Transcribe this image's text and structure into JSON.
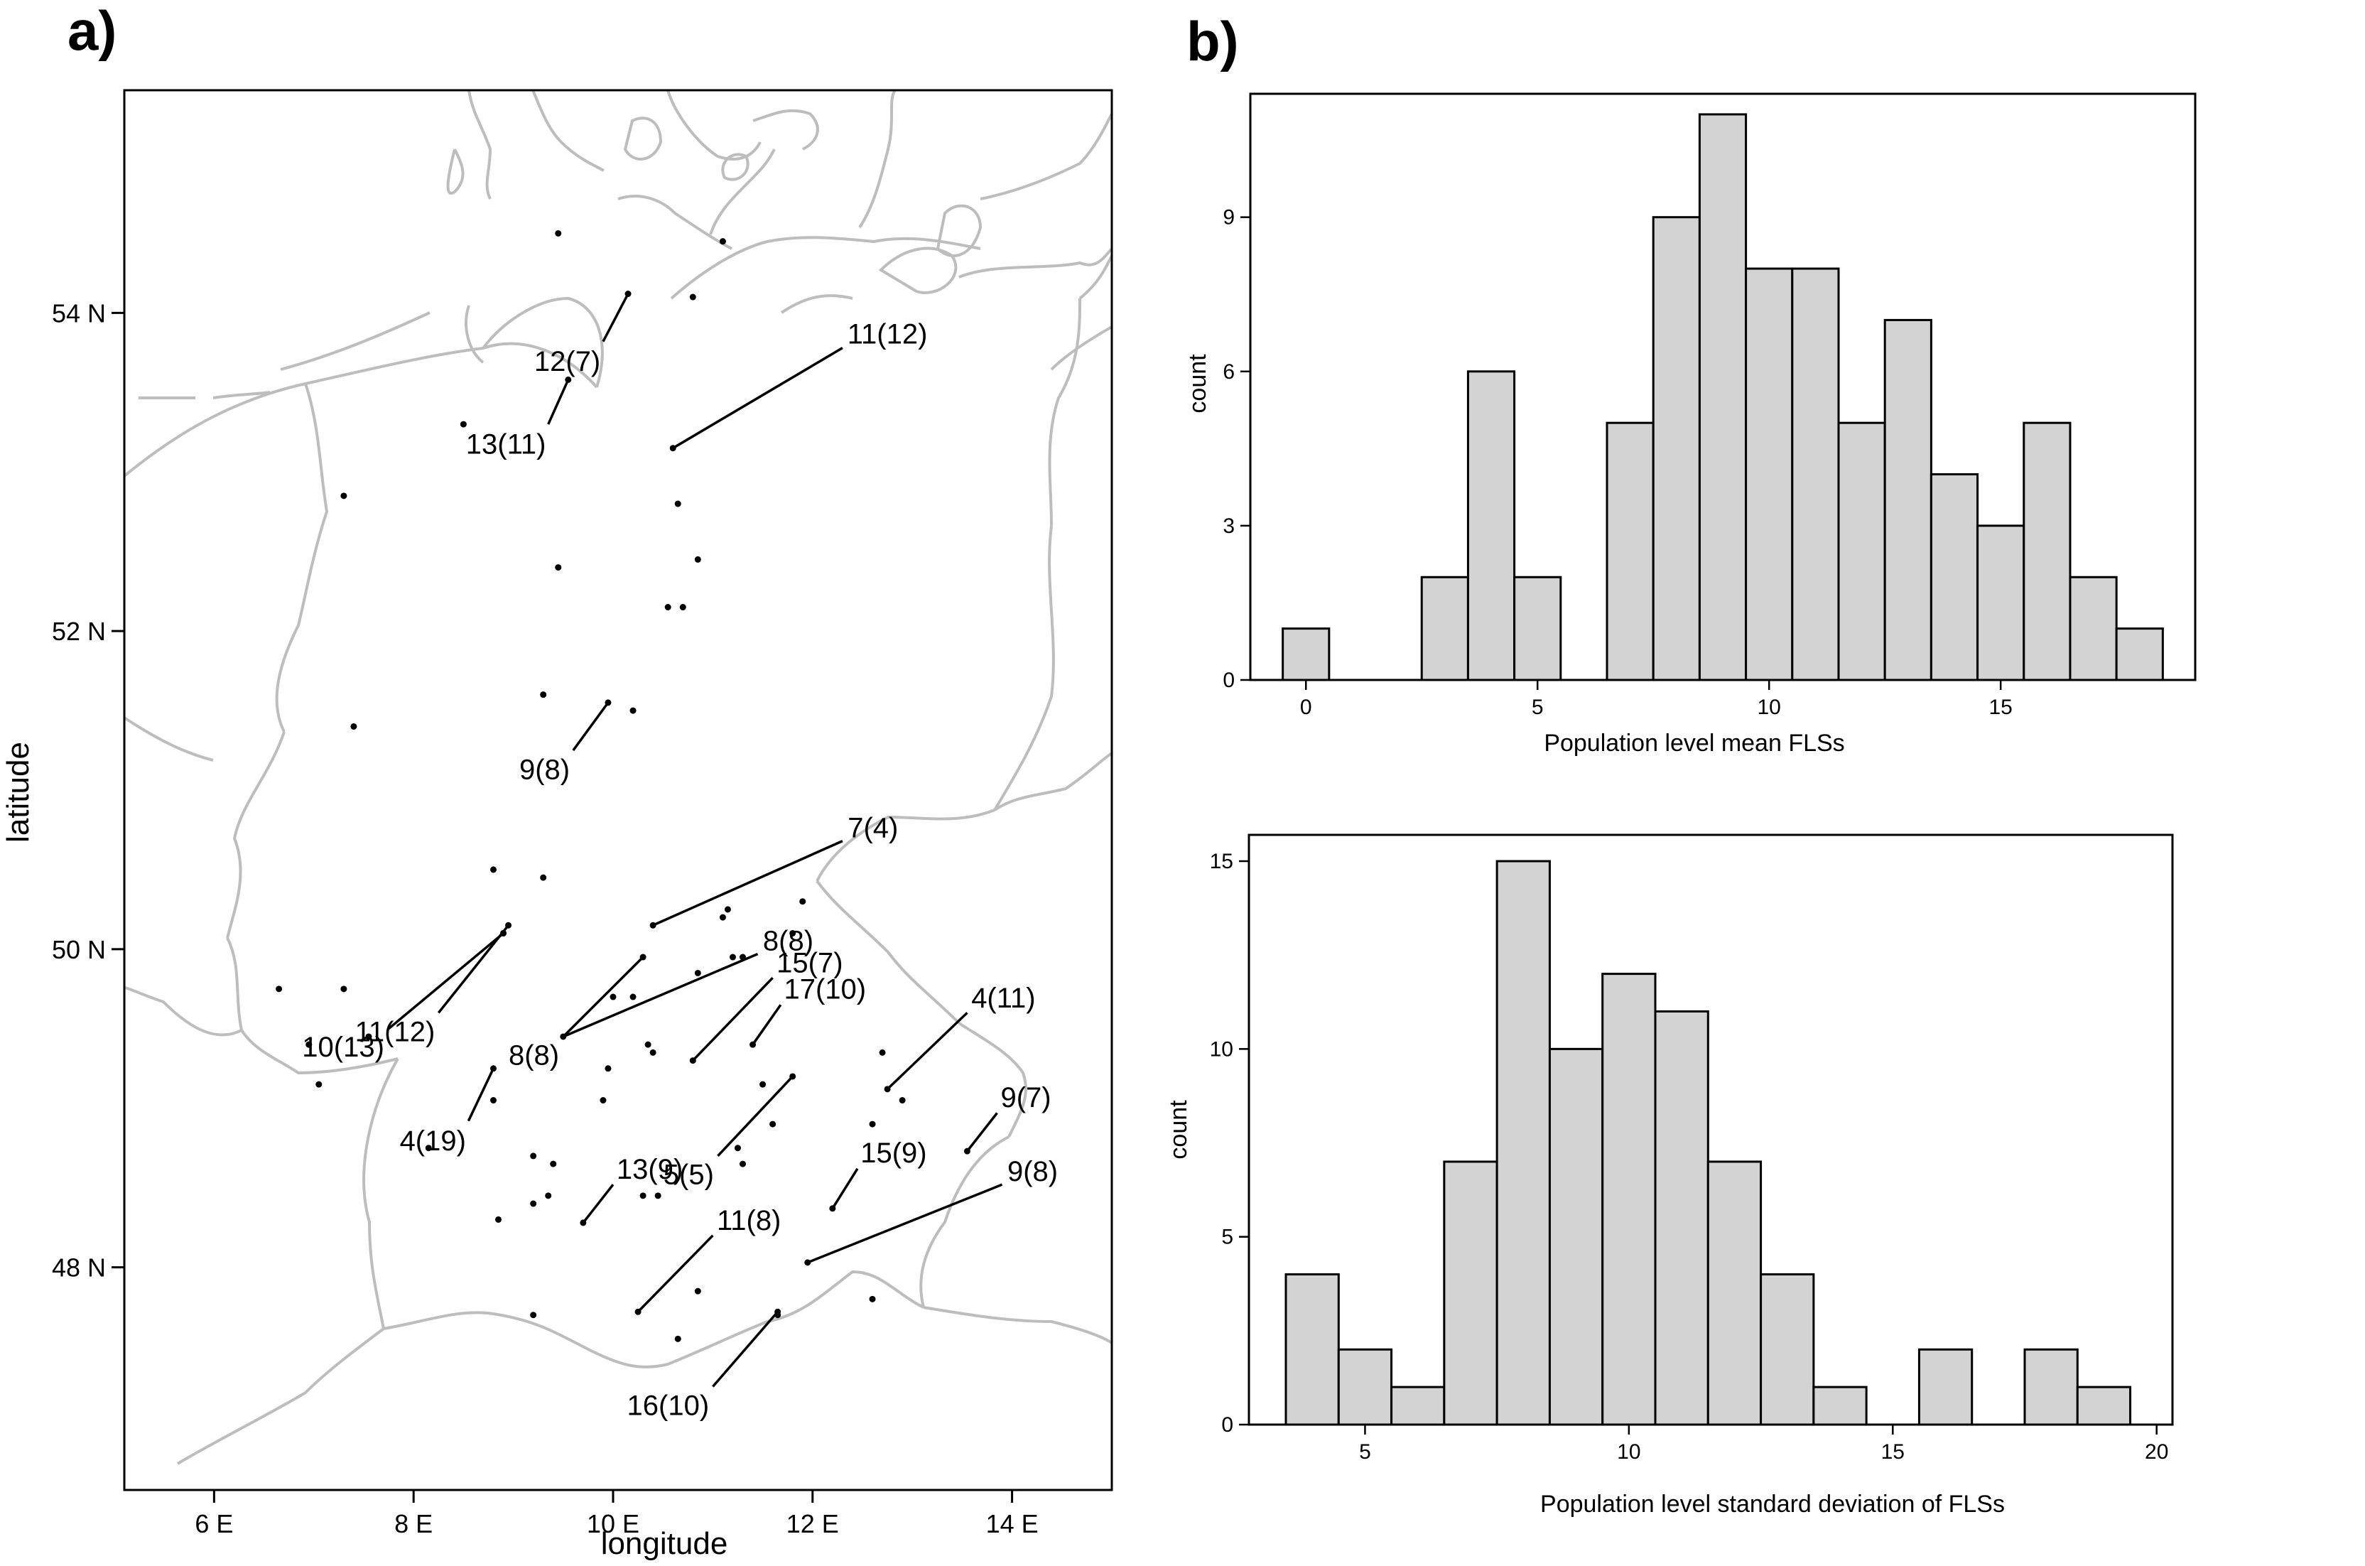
{
  "panels": {
    "a_label": "a)",
    "b_label": "b)"
  },
  "chart_data": [
    {
      "type": "scatter",
      "panel": "a)",
      "xlabel": "longitude",
      "ylabel": "latitude",
      "xlim": [
        5.1,
        15.0
      ],
      "ylim": [
        46.6,
        55.4
      ],
      "xticks": [
        6,
        8,
        10,
        12,
        14
      ],
      "xtick_labels": [
        "6 E",
        "8 E",
        "10 E",
        "12 E",
        "14 E"
      ],
      "yticks": [
        48,
        50,
        52,
        54
      ],
      "ytick_labels": [
        "48 N",
        "50 N",
        "52 N",
        "54 N"
      ],
      "points": [
        [
          9.45,
          54.5
        ],
        [
          11.1,
          54.45
        ],
        [
          10.8,
          54.1
        ],
        [
          8.5,
          53.3
        ],
        [
          7.3,
          52.85
        ],
        [
          10.65,
          52.8
        ],
        [
          10.85,
          52.45
        ],
        [
          9.45,
          52.4
        ],
        [
          10.55,
          52.15
        ],
        [
          10.7,
          52.15
        ],
        [
          9.3,
          51.6
        ],
        [
          10.2,
          51.5
        ],
        [
          7.4,
          51.4
        ],
        [
          8.8,
          50.5
        ],
        [
          9.3,
          50.45
        ],
        [
          11.15,
          50.25
        ],
        [
          11.1,
          50.2
        ],
        [
          11.9,
          50.3
        ],
        [
          8.9,
          50.1
        ],
        [
          11.8,
          50.1
        ],
        [
          11.3,
          49.95
        ],
        [
          6.65,
          49.75
        ],
        [
          7.3,
          49.75
        ],
        [
          7.55,
          49.45
        ],
        [
          10.0,
          49.7
        ],
        [
          10.2,
          49.7
        ],
        [
          10.85,
          49.85
        ],
        [
          11.2,
          49.95
        ],
        [
          6.95,
          49.4
        ],
        [
          10.35,
          49.4
        ],
        [
          10.4,
          49.35
        ],
        [
          9.95,
          49.25
        ],
        [
          12.7,
          49.35
        ],
        [
          7.05,
          49.15
        ],
        [
          8.8,
          49.05
        ],
        [
          9.9,
          49.05
        ],
        [
          11.5,
          49.15
        ],
        [
          12.9,
          49.05
        ],
        [
          11.6,
          48.9
        ],
        [
          12.6,
          48.9
        ],
        [
          9.2,
          48.7
        ],
        [
          9.4,
          48.65
        ],
        [
          11.25,
          48.75
        ],
        [
          11.3,
          48.65
        ],
        [
          9.35,
          48.45
        ],
        [
          9.2,
          48.4
        ],
        [
          10.3,
          48.45
        ],
        [
          10.45,
          48.45
        ],
        [
          8.85,
          48.3
        ],
        [
          10.85,
          47.85
        ],
        [
          12.6,
          47.8
        ],
        [
          9.2,
          47.7
        ],
        [
          11.65,
          47.7
        ],
        [
          10.65,
          47.55
        ],
        [
          8.15,
          48.75
        ]
      ],
      "segments": [
        {
          "label": "12(7)",
          "from": [
            10.15,
            54.12
          ],
          "to": [
            9.9,
            53.82
          ]
        },
        {
          "label": "13(11)",
          "from": [
            9.55,
            53.58
          ],
          "to": [
            9.35,
            53.3
          ]
        },
        {
          "label": "11(12)",
          "from": [
            10.6,
            53.15
          ],
          "to": [
            12.3,
            53.78
          ]
        },
        {
          "label": "9(8)",
          "from": [
            9.95,
            51.55
          ],
          "to": [
            9.6,
            51.25
          ]
        },
        {
          "label": "7(4)",
          "from": [
            10.4,
            50.15
          ],
          "to": [
            12.3,
            50.68
          ]
        },
        {
          "label": "10(13)",
          "from": [
            8.9,
            50.1
          ],
          "to": [
            7.75,
            49.5
          ]
        },
        {
          "label": "11(12)",
          "from": [
            8.95,
            50.15
          ],
          "to": [
            8.25,
            49.6
          ]
        },
        {
          "label": "8(8)",
          "from": [
            10.3,
            49.95
          ],
          "to": [
            9.5,
            49.45
          ]
        },
        {
          "label": "8(8)",
          "from": [
            9.5,
            49.45
          ],
          "to": [
            11.45,
            49.97
          ]
        },
        {
          "label": "15(7)",
          "from": [
            10.8,
            49.3
          ],
          "to": [
            11.6,
            49.82
          ]
        },
        {
          "label": "17(10)",
          "from": [
            11.4,
            49.4
          ],
          "to": [
            11.68,
            49.65
          ]
        },
        {
          "label": "4(11)",
          "from": [
            12.75,
            49.12
          ],
          "to": [
            13.55,
            49.6
          ]
        },
        {
          "label": "4(19)",
          "from": [
            8.8,
            49.25
          ],
          "to": [
            8.55,
            48.92
          ]
        },
        {
          "label": "5(5)",
          "from": [
            11.8,
            49.2
          ],
          "to": [
            11.05,
            48.7
          ]
        },
        {
          "label": "9(7)",
          "from": [
            13.55,
            48.73
          ],
          "to": [
            13.85,
            48.97
          ]
        },
        {
          "label": "15(9)",
          "from": [
            12.2,
            48.37
          ],
          "to": [
            12.45,
            48.62
          ]
        },
        {
          "label": "13(9)",
          "from": [
            9.7,
            48.28
          ],
          "to": [
            10.0,
            48.52
          ]
        },
        {
          "label": "9(8)",
          "from": [
            11.95,
            48.03
          ],
          "to": [
            13.9,
            48.52
          ]
        },
        {
          "label": "11(8)",
          "from": [
            10.25,
            47.72
          ],
          "to": [
            11.0,
            48.2
          ]
        },
        {
          "label": "16(10)",
          "from": [
            11.65,
            47.72
          ],
          "to": [
            11.0,
            47.25
          ]
        }
      ],
      "border_color": "#bdbdbd"
    },
    {
      "type": "bar",
      "panel": "b) top",
      "xlabel": "Population level mean FLSs",
      "ylabel": "count",
      "xlim": [
        -1.2,
        19.2
      ],
      "ylim": [
        0,
        11.4
      ],
      "xticks": [
        0,
        5,
        10,
        15
      ],
      "yticks": [
        0,
        3,
        6,
        9
      ],
      "bin_width": 1,
      "bin_centers": [
        0,
        1,
        2,
        3,
        4,
        5,
        6,
        7,
        8,
        9,
        10,
        11,
        12,
        13,
        14,
        15,
        16,
        17,
        18
      ],
      "values": [
        1,
        0,
        0,
        2,
        6,
        2,
        0,
        5,
        9,
        11,
        8,
        8,
        5,
        7,
        4,
        3,
        5,
        2,
        1
      ],
      "bar_color": "#d3d3d3"
    },
    {
      "type": "bar",
      "panel": "b) bottom",
      "xlabel": "Population level standard deviation of FLSs",
      "ylabel": "count",
      "xlim": [
        2.8,
        20.3
      ],
      "ylim": [
        0,
        15.7
      ],
      "xticks": [
        5,
        10,
        15,
        20
      ],
      "yticks": [
        0,
        5,
        10,
        15
      ],
      "bin_width": 1,
      "bin_centers": [
        4,
        5,
        6,
        7,
        8,
        9,
        10,
        11,
        12,
        13,
        14,
        15,
        16,
        17,
        18,
        19
      ],
      "values": [
        4,
        2,
        1,
        7,
        15,
        10,
        12,
        11,
        7,
        4,
        1,
        0,
        2,
        0,
        2,
        1
      ],
      "bar_color": "#d3d3d3"
    }
  ]
}
